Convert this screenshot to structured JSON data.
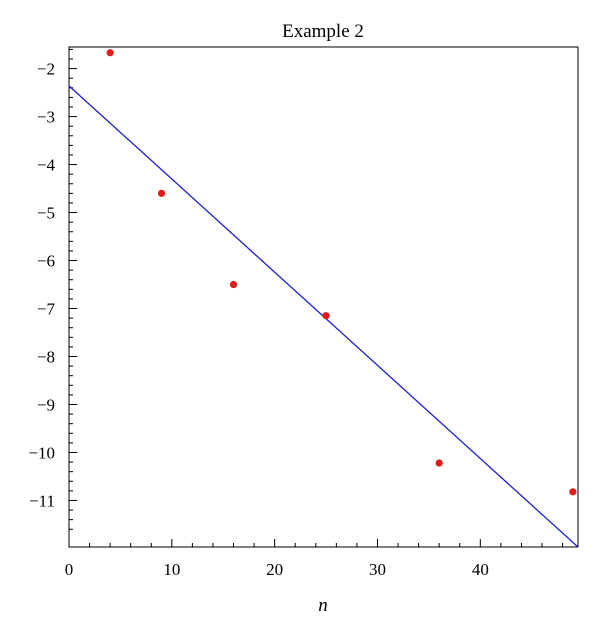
{
  "chart_data": {
    "type": "scatter",
    "title": "Example 2",
    "xlabel": "n",
    "ylabel": "",
    "xlim": [
      0,
      49.5
    ],
    "ylim": [
      -11.97,
      -1.55
    ],
    "x_ticks": [
      0,
      10,
      20,
      30,
      40
    ],
    "x_tick_labels": [
      "0",
      "10",
      "20",
      "30",
      "40"
    ],
    "y_ticks": [
      -2,
      -3,
      -4,
      -5,
      -6,
      -7,
      -8,
      -9,
      -10,
      -11
    ],
    "y_tick_labels": [
      "−2",
      "−3",
      "−4",
      "−5",
      "−6",
      "−7",
      "−8",
      "−9",
      "−10",
      "−11"
    ],
    "grid": false,
    "legend": "none",
    "series": [
      {
        "type": "scatter",
        "color": "#e31a1c",
        "x": [
          4,
          9,
          16,
          25,
          36,
          49
        ],
        "y": [
          -1.67,
          -4.6,
          -6.5,
          -7.15,
          -10.22,
          -10.82
        ]
      },
      {
        "type": "line",
        "color": "#1f1fcf",
        "x": [
          0,
          49.5
        ],
        "y": [
          -2.36,
          -11.97
        ]
      }
    ]
  }
}
